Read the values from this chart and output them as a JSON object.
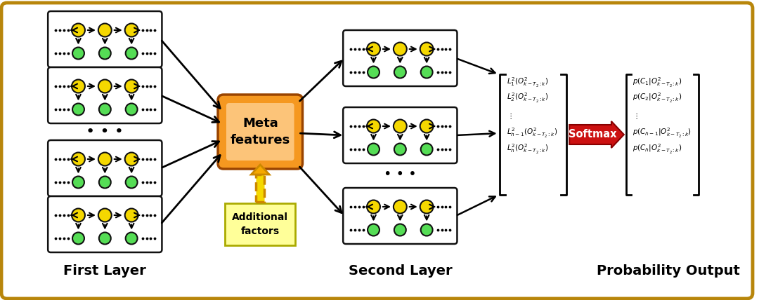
{
  "bg_color": "#ffffff",
  "border_color": "#b8860b",
  "title_first_layer": "First Layer",
  "title_second_layer": "Second Layer",
  "title_prob_output": "Probability Output",
  "yellow_color": "#f5d800",
  "green_color": "#55dd55",
  "meta_orange_dark": "#e07800",
  "meta_orange_light": "#ffd080",
  "additional_box_color": "#ffff99",
  "additional_border": "#cccc00",
  "softmax_color": "#cc1111",
  "arrow_color": "#111111",
  "node_outline": "#111111"
}
